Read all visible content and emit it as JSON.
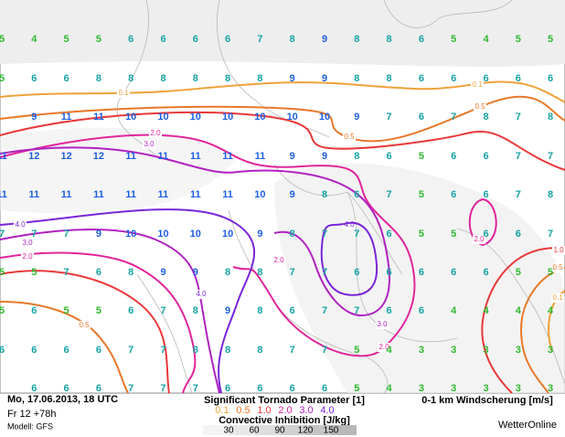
{
  "map": {
    "shear_rows": [
      [
        5,
        4,
        5,
        5,
        6,
        6,
        6,
        6,
        7,
        8,
        9,
        8,
        8,
        6,
        5,
        4,
        5,
        5
      ],
      [
        5,
        6,
        6,
        8,
        8,
        8,
        8,
        8,
        8,
        9,
        9,
        8,
        8,
        6,
        6,
        6,
        6,
        6
      ],
      [
        null,
        9,
        11,
        11,
        10,
        10,
        10,
        10,
        10,
        10,
        10,
        9,
        7,
        6,
        7,
        8,
        7,
        8
      ],
      [
        11,
        12,
        12,
        12,
        11,
        11,
        11,
        11,
        11,
        9,
        9,
        8,
        6,
        5,
        6,
        6,
        7,
        7
      ],
      [
        11,
        11,
        11,
        11,
        11,
        11,
        11,
        11,
        10,
        9,
        8,
        6,
        7,
        5,
        6,
        6,
        7,
        8
      ],
      [
        7,
        7,
        7,
        9,
        10,
        10,
        10,
        10,
        9,
        8,
        7,
        7,
        6,
        5,
        5,
        6,
        6,
        7
      ],
      [
        5,
        5,
        7,
        6,
        8,
        9,
        9,
        8,
        8,
        7,
        7,
        6,
        6,
        6,
        6,
        6,
        5,
        5
      ],
      [
        5,
        6,
        5,
        5,
        6,
        7,
        8,
        9,
        8,
        6,
        7,
        7,
        6,
        6,
        4,
        4,
        4,
        4
      ],
      [
        6,
        6,
        6,
        6,
        7,
        7,
        8,
        8,
        8,
        7,
        7,
        5,
        4,
        3,
        3,
        3,
        3,
        3
      ],
      [
        null,
        6,
        6,
        6,
        7,
        7,
        7,
        6,
        6,
        6,
        6,
        5,
        4,
        3,
        3,
        3,
        3,
        3
      ]
    ],
    "shear_colors": [
      {
        "max": 5,
        "color": "#2eb82e"
      },
      {
        "max": 8,
        "color": "#17a3a3"
      },
      {
        "max": 12,
        "color": "#1f5fe0"
      }
    ],
    "footer": {
      "date": "Mo, 17.06.2013, 18 UTC",
      "run": "Fr 12 +78h",
      "model": "Modell: GFS",
      "stp_title": "Significant Tornado Parameter [1]",
      "levels": [
        {
          "label": "0.1",
          "color": "#eea23a"
        },
        {
          "label": "0.5",
          "color": "#e8782a"
        },
        {
          "label": "1.0",
          "color": "#e8383a"
        },
        {
          "label": "2.0",
          "color": "#e0259a"
        },
        {
          "label": "3.0",
          "color": "#b022c0"
        },
        {
          "label": "4.0",
          "color": "#7a26d8"
        }
      ],
      "cin_title": "Convective Inhibition [J/kg]",
      "cin_scale": [
        "30",
        "60",
        "90",
        "120",
        "150"
      ],
      "shear_title": "0-1 km Windscherung [m/s]",
      "brand": "WetterOnline"
    }
  }
}
